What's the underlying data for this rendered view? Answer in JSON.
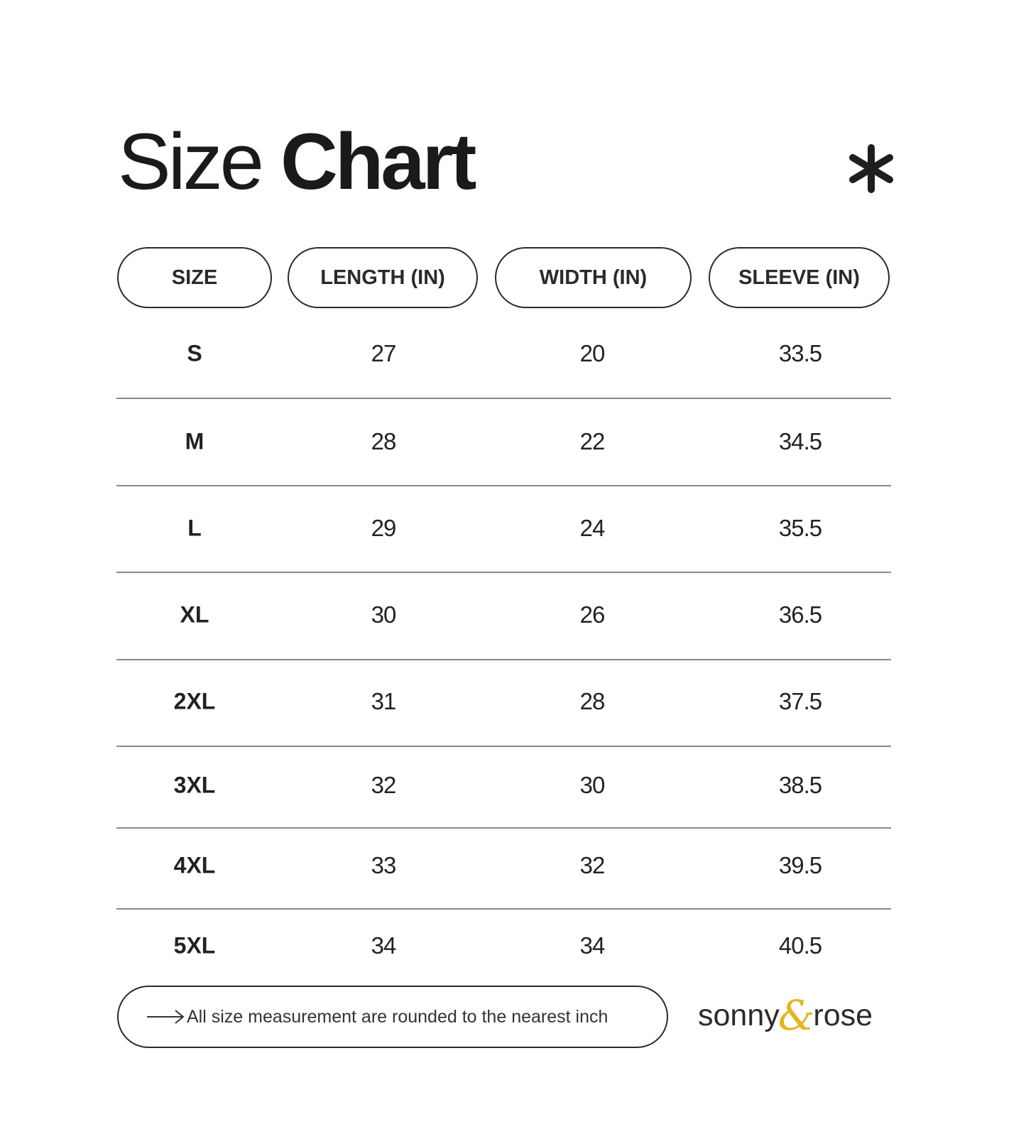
{
  "title": {
    "light": "Size",
    "bold": "Chart"
  },
  "decor_icon": "asterisk-icon",
  "headers": [
    "SIZE",
    "LENGTH (IN)",
    "WIDTH (IN)",
    "SLEEVE (IN)"
  ],
  "rows": [
    [
      "S",
      "27",
      "20",
      "33.5"
    ],
    [
      "M",
      "28",
      "22",
      "34.5"
    ],
    [
      "L",
      "29",
      "24",
      "35.5"
    ],
    [
      "XL",
      "30",
      "26",
      "36.5"
    ],
    [
      "2XL",
      "31",
      "28",
      "37.5"
    ],
    [
      "3XL",
      "32",
      "30",
      "38.5"
    ],
    [
      "4XL",
      "33",
      "32",
      "39.5"
    ],
    [
      "5XL",
      "34",
      "34",
      "40.5"
    ]
  ],
  "footer": {
    "note": "All size measurement are rounded to the nearest inch",
    "icon": "arrow-right-icon"
  },
  "logo": {
    "left": "sonny",
    "amp": "&",
    "right": "rose",
    "accent_color": "#e3b520"
  }
}
